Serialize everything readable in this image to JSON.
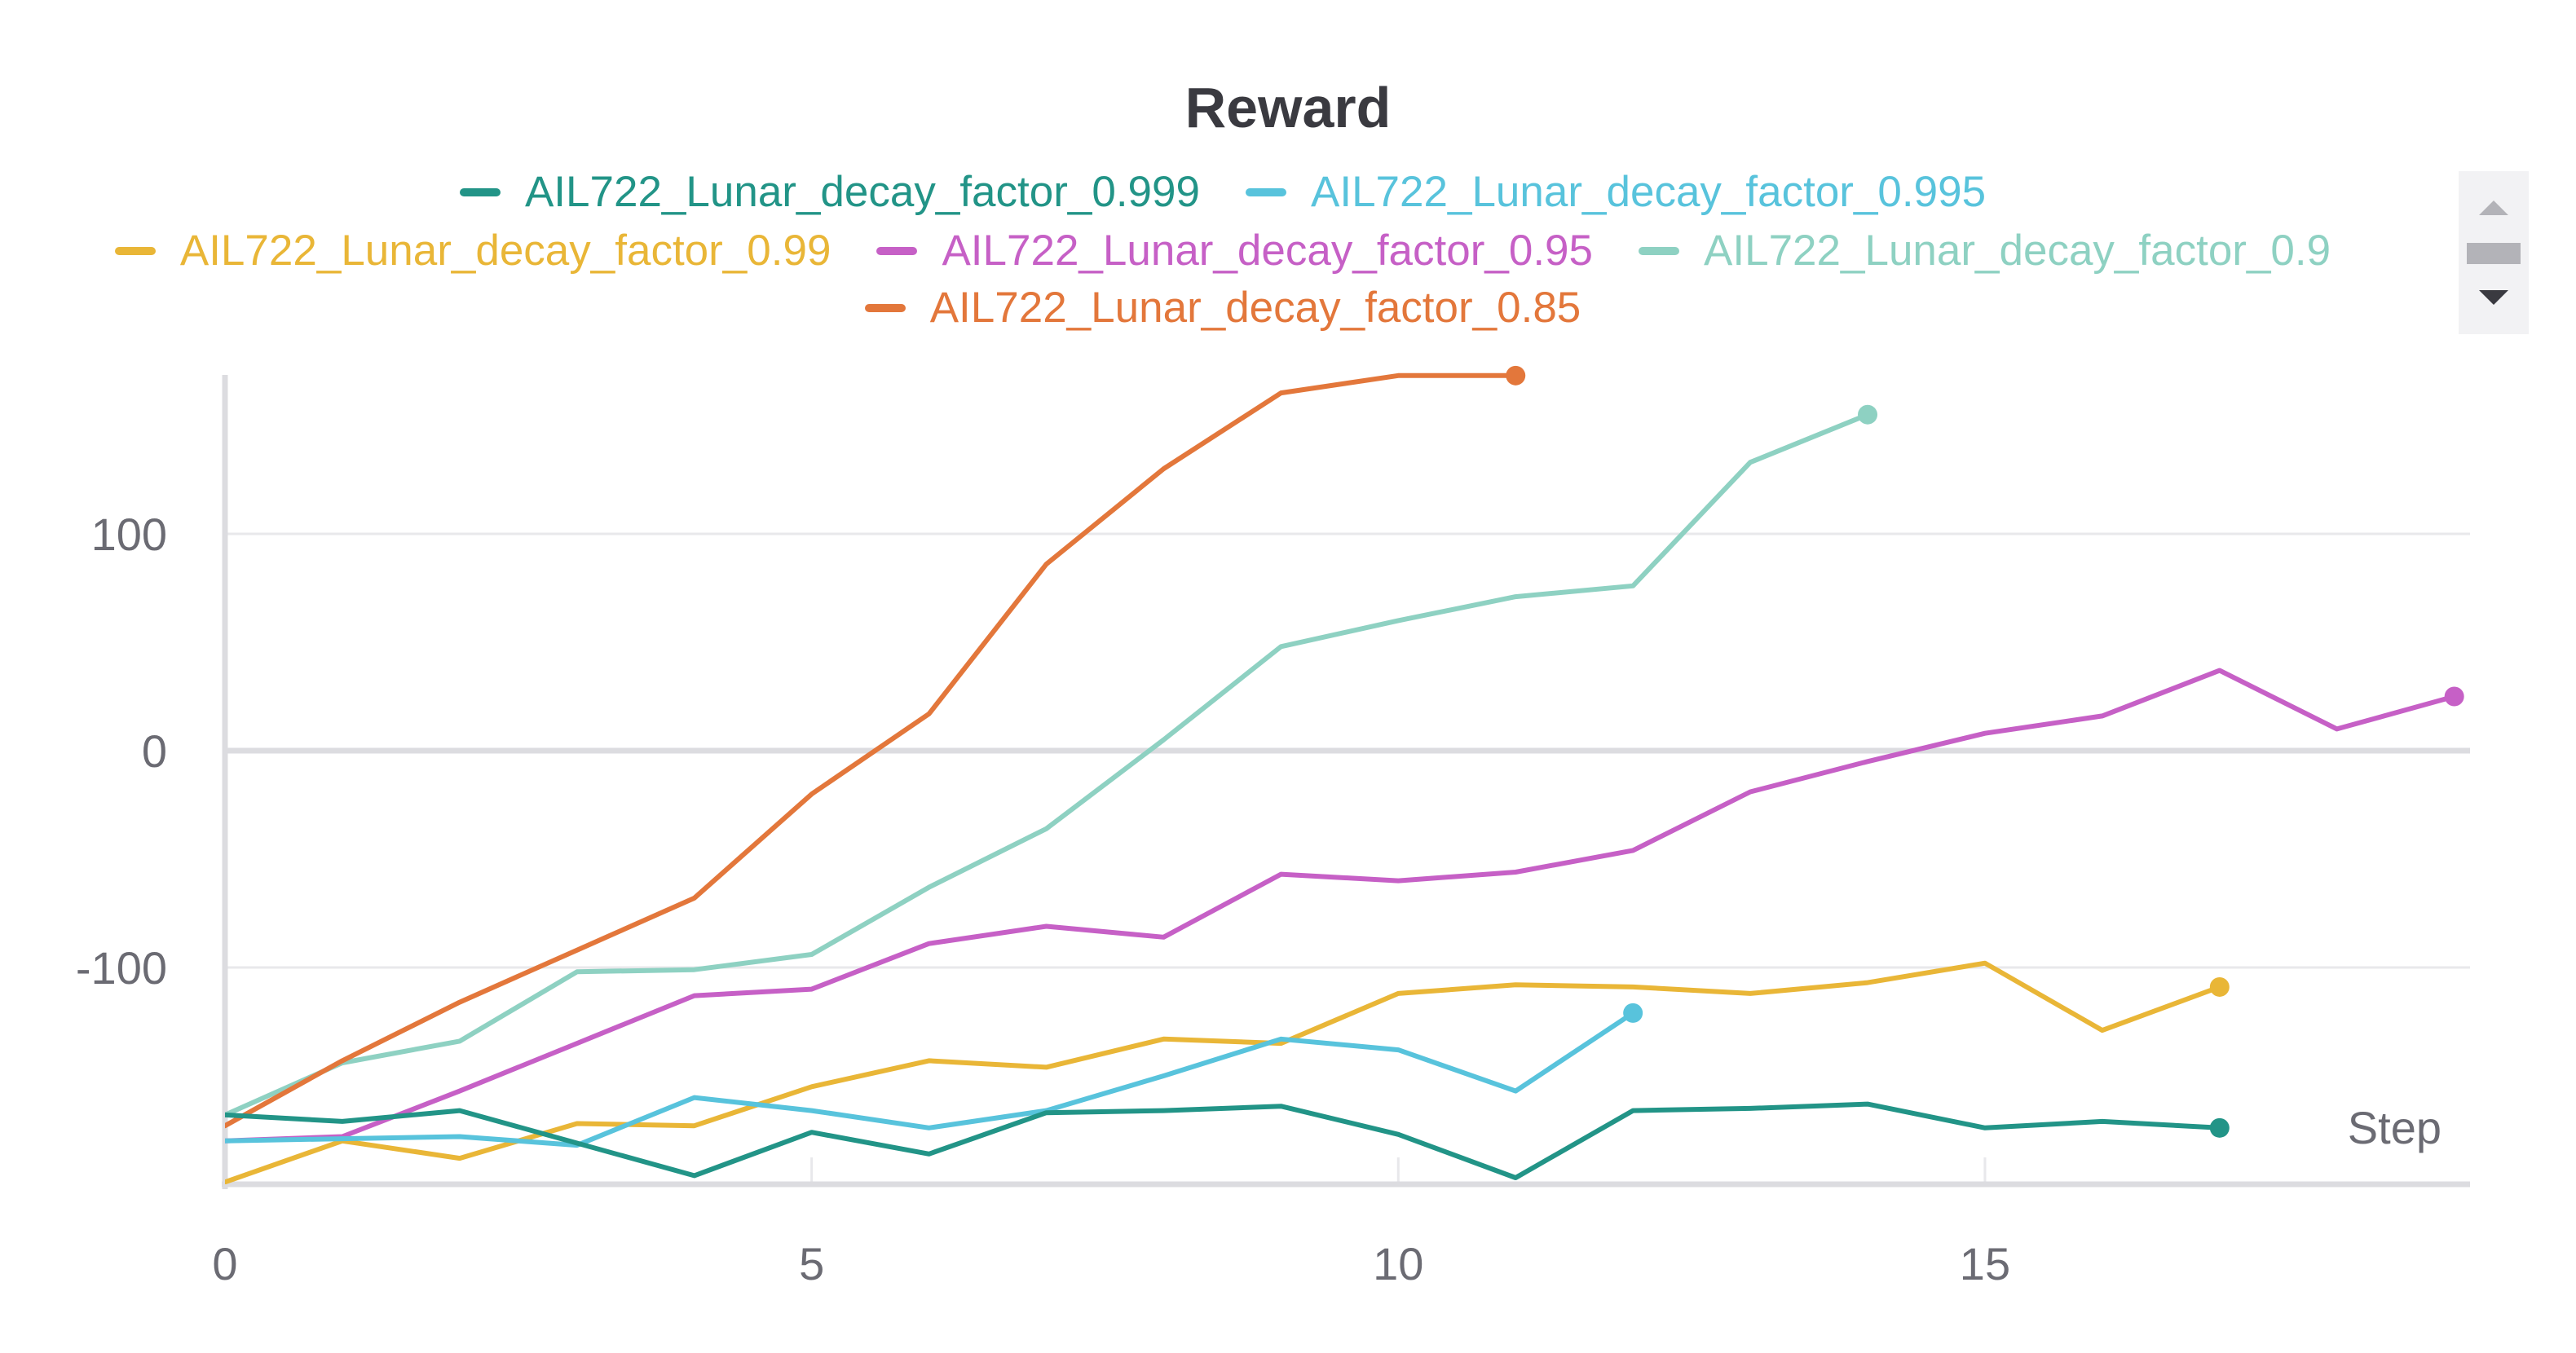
{
  "chart_data": {
    "type": "line",
    "title": "Reward",
    "xlabel": "Step",
    "ylabel": "",
    "xlim": [
      0,
      19
    ],
    "ylim": [
      -200,
      175
    ],
    "xticks": [
      0,
      5,
      10,
      15
    ],
    "yticks": [
      100,
      0,
      -100
    ],
    "ytick_labels": [
      "100",
      "0",
      "-100"
    ],
    "grid": true,
    "legend_position": "top-center",
    "series": [
      {
        "name": "AIL722_Lunar_decay_factor_0.999",
        "color": "#229487",
        "x": [
          0,
          1,
          2,
          3,
          4,
          5,
          6,
          7,
          8,
          9,
          10,
          11,
          12,
          13,
          14,
          15,
          16,
          17
        ],
        "y": [
          -168,
          -171,
          -166,
          -181,
          -196,
          -176,
          -186,
          -167,
          -166,
          -164,
          -177,
          -197,
          -166,
          -165,
          -163,
          -174,
          -171,
          -174
        ]
      },
      {
        "name": "AIL722_Lunar_decay_factor_0.995",
        "color": "#58c3dc",
        "x": [
          0,
          1,
          2,
          3,
          4,
          5,
          6,
          7,
          8,
          9,
          10,
          11,
          12
        ],
        "y": [
          -180,
          -179,
          -178,
          -182,
          -160,
          -166,
          -174,
          -166,
          -150,
          -133,
          -138,
          -157,
          -121
        ]
      },
      {
        "name": "AIL722_Lunar_decay_factor_0.99",
        "color": "#e9b637",
        "x": [
          0,
          1,
          2,
          3,
          4,
          5,
          6,
          7,
          8,
          9,
          10,
          11,
          12,
          13,
          14,
          15,
          16,
          17
        ],
        "y": [
          -199,
          -180,
          -188,
          -172,
          -173,
          -155,
          -143,
          -146,
          -133,
          -135,
          -112,
          -108,
          -109,
          -112,
          -107,
          -98,
          -129,
          -109
        ]
      },
      {
        "name": "AIL722_Lunar_decay_factor_0.95",
        "color": "#c660c6",
        "x": [
          0,
          1,
          2,
          3,
          4,
          5,
          6,
          7,
          8,
          9,
          10,
          11,
          12,
          13,
          14,
          15,
          16,
          17,
          18,
          19
        ],
        "y": [
          -180,
          -178,
          -157,
          -135,
          -113,
          -110,
          -89,
          -81,
          -86,
          -57,
          -60,
          -56,
          -46,
          -19,
          -5,
          8,
          16,
          37,
          10,
          25
        ]
      },
      {
        "name": "AIL722_Lunar_decay_factor_0.9",
        "color": "#8ed1c2",
        "x": [
          0,
          1,
          2,
          3,
          4,
          5,
          6,
          7,
          8,
          9,
          10,
          11,
          12,
          13,
          14
        ],
        "y": [
          -168,
          -144,
          -134,
          -102,
          -101,
          -94,
          -63,
          -36,
          5,
          48,
          60,
          71,
          76,
          133,
          155
        ]
      },
      {
        "name": "AIL722_Lunar_decay_factor_0.85",
        "color": "#e3773b",
        "x": [
          0,
          1,
          2,
          3,
          4,
          5,
          6,
          7,
          8,
          9,
          10,
          11
        ],
        "y": [
          -173,
          -143,
          -116,
          -92,
          -68,
          -20,
          17,
          86,
          130,
          165,
          173,
          173
        ]
      }
    ]
  }
}
